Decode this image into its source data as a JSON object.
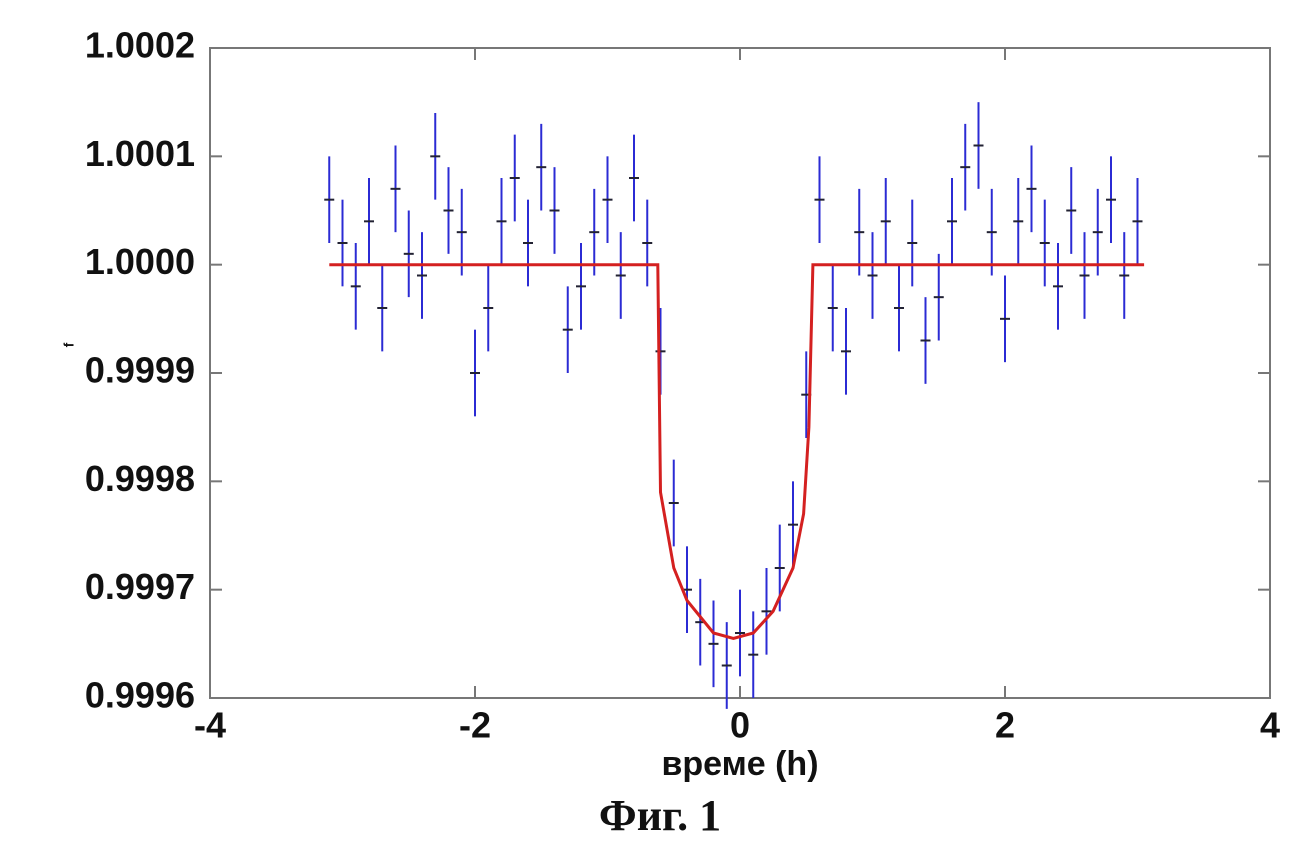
{
  "chart_data": {
    "type": "scatter",
    "xlabel": "време (h)",
    "ylabel": "f",
    "caption": "Фиг. 1",
    "xlim": [
      -4,
      4
    ],
    "xticks": [
      -4,
      -2,
      0,
      2,
      4
    ],
    "ylim": [
      0.9996,
      1.0002
    ],
    "yticks": [
      {
        "value": 0.9996,
        "label": "0.9996"
      },
      {
        "value": 0.9997,
        "label": "0.9997"
      },
      {
        "value": 0.9998,
        "label": "0.9998"
      },
      {
        "value": 0.9999,
        "label": "0.9999"
      },
      {
        "value": 1.0,
        "label": "1.0000"
      },
      {
        "value": 1.0001,
        "label": "1.0001"
      },
      {
        "value": 1.0002,
        "label": "1.0002"
      }
    ],
    "series": [
      {
        "type": "scatter",
        "color": "#2b2bd4",
        "error": 4e-05,
        "x": [
          -3.1,
          -3.0,
          -2.9,
          -2.8,
          -2.7,
          -2.6,
          -2.5,
          -2.4,
          -2.3,
          -2.2,
          -2.1,
          -2.0,
          -1.9,
          -1.8,
          -1.7,
          -1.6,
          -1.5,
          -1.4,
          -1.3,
          -1.2,
          -1.1,
          -1.0,
          -0.9,
          -0.8,
          -0.7,
          -0.6,
          -0.5,
          -0.4,
          -0.3,
          -0.2,
          -0.1,
          0.0,
          0.1,
          0.2,
          0.3,
          0.4,
          0.5,
          0.6,
          0.7,
          0.8,
          0.9,
          1.0,
          1.1,
          1.2,
          1.3,
          1.4,
          1.5,
          1.6,
          1.7,
          1.8,
          1.9,
          2.0,
          2.1,
          2.2,
          2.3,
          2.4,
          2.5,
          2.6,
          2.7,
          2.8,
          2.9,
          3.0
        ],
        "values": [
          1.00006,
          1.00002,
          0.99998,
          1.00004,
          0.99996,
          1.00007,
          1.00001,
          0.99999,
          1.0001,
          1.00005,
          1.00003,
          0.9999,
          0.99996,
          1.00004,
          1.00008,
          1.00002,
          1.00009,
          1.00005,
          0.99994,
          0.99998,
          1.00003,
          1.00006,
          0.99999,
          1.00008,
          1.00002,
          0.99992,
          0.99978,
          0.9997,
          0.99967,
          0.99965,
          0.99963,
          0.99966,
          0.99964,
          0.99968,
          0.99972,
          0.99976,
          0.99988,
          1.00006,
          0.99996,
          0.99992,
          1.00003,
          0.99999,
          1.00004,
          0.99996,
          1.00002,
          0.99993,
          0.99997,
          1.00004,
          1.00009,
          1.00011,
          1.00003,
          0.99995,
          1.00004,
          1.00007,
          1.00002,
          0.99998,
          1.00005,
          0.99999,
          1.00003,
          1.00006,
          0.99999,
          1.00004
        ]
      },
      {
        "type": "line",
        "color": "#d42020",
        "x": [
          -3.1,
          -0.62,
          -0.6,
          -0.5,
          -0.4,
          -0.2,
          -0.05,
          0.1,
          0.25,
          0.4,
          0.48,
          0.52,
          0.55,
          3.05
        ],
        "values": [
          1.0,
          1.0,
          0.99979,
          0.99972,
          0.99969,
          0.99966,
          0.999655,
          0.99966,
          0.99968,
          0.99972,
          0.99977,
          0.99985,
          1.0,
          1.0
        ]
      }
    ]
  }
}
